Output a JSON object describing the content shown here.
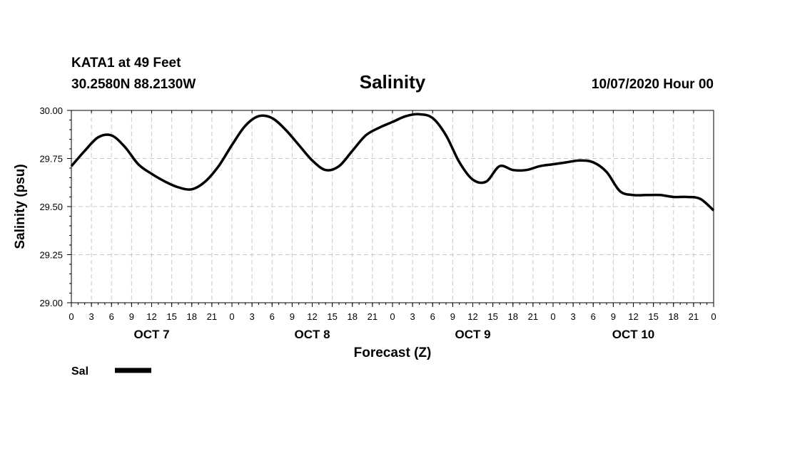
{
  "header": {
    "station": "KATA1 at 49 Feet",
    "coords": "30.2580N 88.2130W",
    "title": "Salinity",
    "run": "10/07/2020 Hour 00"
  },
  "legend": {
    "label": "Sal"
  },
  "chart_data": {
    "type": "line",
    "title": "Salinity",
    "xlabel": "Forecast (Z)",
    "ylabel": "Salinity (psu)",
    "ylim": [
      29.0,
      30.0
    ],
    "yticks": [
      "29.00",
      "29.25",
      "29.50",
      "29.75",
      "30.00"
    ],
    "xlim": [
      0,
      96
    ],
    "xtick_hours": [
      0,
      3,
      6,
      9,
      12,
      15,
      18,
      21,
      24,
      27,
      30,
      33,
      36,
      39,
      42,
      45,
      48,
      51,
      54,
      57,
      60,
      63,
      66,
      69,
      72,
      75,
      78,
      81,
      84,
      87,
      90,
      93,
      96
    ],
    "xtick_labels": [
      "0",
      "3",
      "6",
      "9",
      "12",
      "15",
      "18",
      "21",
      "0",
      "3",
      "6",
      "9",
      "12",
      "15",
      "18",
      "21",
      "0",
      "3",
      "6",
      "9",
      "12",
      "15",
      "18",
      "21",
      "0",
      "3",
      "6",
      "9",
      "12",
      "15",
      "18",
      "21",
      "0"
    ],
    "day_labels": [
      {
        "hour": 12,
        "label": "OCT 7"
      },
      {
        "hour": 36,
        "label": "OCT 8"
      },
      {
        "hour": 60,
        "label": "OCT 9"
      },
      {
        "hour": 84,
        "label": "OCT 10"
      }
    ],
    "grid": true,
    "legend_position": "bottom-left",
    "series": [
      {
        "name": "Sal",
        "color": "#000000",
        "x": [
          0,
          2,
          4,
          6,
          8,
          10,
          12,
          14,
          16,
          18,
          20,
          22,
          24,
          26,
          28,
          30,
          32,
          34,
          36,
          38,
          40,
          42,
          44,
          46,
          48,
          50,
          52,
          54,
          56,
          58,
          60,
          62,
          64,
          66,
          68,
          70,
          72,
          74,
          76,
          78,
          80,
          82,
          84,
          86,
          88,
          90,
          92,
          94,
          96
        ],
        "y": [
          29.71,
          29.79,
          29.86,
          29.87,
          29.81,
          29.72,
          29.67,
          29.63,
          29.6,
          29.59,
          29.63,
          29.71,
          29.82,
          29.92,
          29.97,
          29.96,
          29.9,
          29.82,
          29.74,
          29.69,
          29.71,
          29.79,
          29.87,
          29.91,
          29.94,
          29.97,
          29.98,
          29.96,
          29.87,
          29.73,
          29.64,
          29.63,
          29.71,
          29.69,
          29.69,
          29.71,
          29.72,
          29.73,
          29.74,
          29.73,
          29.68,
          29.58,
          29.56,
          29.56,
          29.56,
          29.55,
          29.55,
          29.54,
          29.48
        ]
      }
    ]
  }
}
